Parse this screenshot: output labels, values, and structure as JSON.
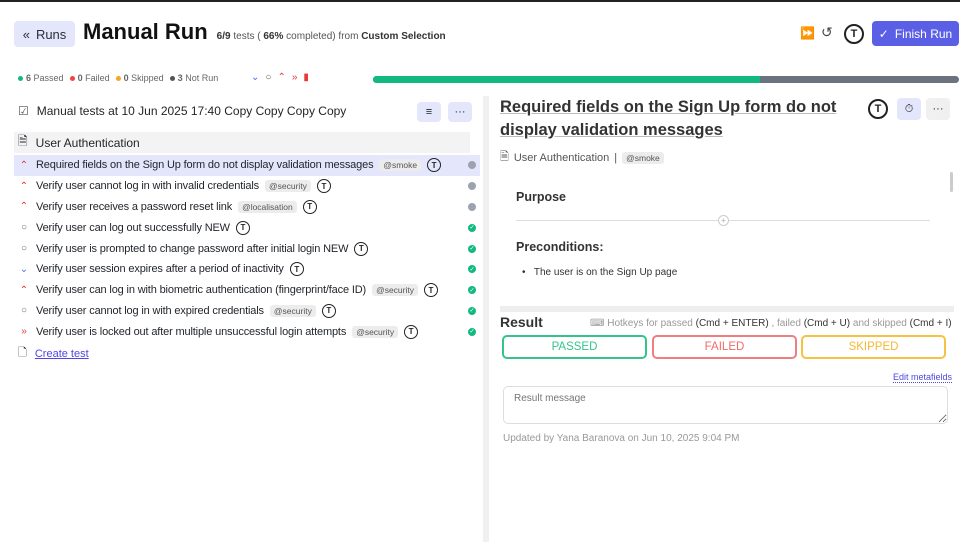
{
  "header": {
    "runs_label": "Runs",
    "title": "Manual Run",
    "progress_count": "6/9",
    "tests_word": "tests (",
    "percent": "66%",
    "completed_from": "completed) from",
    "source": "Custom Selection",
    "finish_label": "Finish Run"
  },
  "stats": {
    "passed": "6",
    "passed_label": "Passed",
    "failed": "0",
    "failed_label": "Failed",
    "skipped": "0",
    "skipped_label": "Skipped",
    "notrun": "3",
    "notrun_label": "Not Run",
    "progress_percent": 66
  },
  "colors": {
    "passed": "#12b981",
    "failed": "#ef4444",
    "skipped": "#f5a623",
    "accent": "#5b5fe6"
  },
  "run": {
    "name": "Manual tests at 10 Jun 2025 17:40 Copy Copy Copy Copy",
    "suite": "User Authentication"
  },
  "tests": [
    {
      "title": "Required fields on the Sign Up form do not display validation messages",
      "tag": "@smoke",
      "priority": "high",
      "status": "notrun"
    },
    {
      "title": "Verify user cannot log in with invalid credentials",
      "tag": "@security",
      "priority": "high",
      "status": "notrun"
    },
    {
      "title": "Verify user receives a password reset link",
      "tag": "@localisation",
      "priority": "high",
      "status": "notrun"
    },
    {
      "title": "Verify user can log out successfully NEW",
      "tag": "",
      "priority": "normal",
      "status": "passed"
    },
    {
      "title": "Verify user is prompted to change password after initial login NEW",
      "tag": "",
      "priority": "normal",
      "status": "passed"
    },
    {
      "title": "Verify user session expires after a period of inactivity",
      "tag": "",
      "priority": "low",
      "status": "passed"
    },
    {
      "title": "Verify user can log in with biometric authentication (fingerprint/face ID)",
      "tag": "@security",
      "priority": "high",
      "status": "passed"
    },
    {
      "title": "Verify user cannot log in with expired credentials",
      "tag": "@security",
      "priority": "normal",
      "status": "passed"
    },
    {
      "title": "Verify user is locked out after multiple unsuccessful login attempts",
      "tag": "@security",
      "priority": "critical",
      "status": "passed"
    }
  ],
  "create_test": "Create test",
  "detail": {
    "title": "Required fields on the Sign Up form do not display validation messages",
    "suite": "User Authentication",
    "tag": "@smoke",
    "purpose": "Purpose",
    "preconditions": "Preconditions:",
    "precondition_item": "The user is on the Sign Up page"
  },
  "result": {
    "heading": "Result",
    "hk1": "Hotkeys for passed",
    "k1": "(Cmd + ENTER)",
    "hk2": ", failed",
    "k2": "(Cmd + U)",
    "hk3": "and skipped",
    "k3": "(Cmd + I)",
    "passed": "PASSED",
    "failed": "FAILED",
    "skipped": "SKIPPED",
    "edit_metafields": "Edit metafields",
    "message_placeholder": "Result message",
    "updated": "Updated by Yana Baranova on Jun 10, 2025 9:04 PM"
  }
}
